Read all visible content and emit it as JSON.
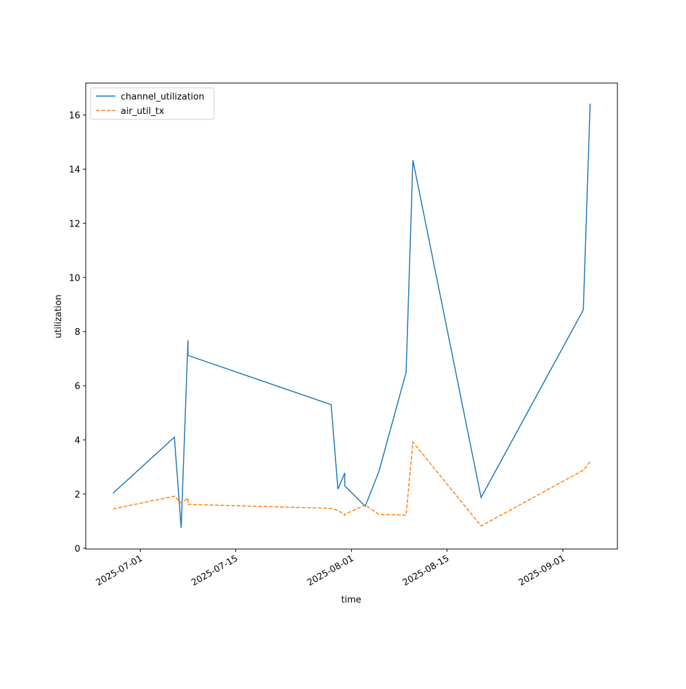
{
  "chart_data": {
    "type": "line",
    "x_label": "time",
    "y_label": "utilization",
    "x": [
      "2025-06-27",
      "2025-07-06",
      "2025-07-07",
      "2025-07-08",
      "2025-07-08",
      "2025-07-29",
      "2025-07-30",
      "2025-07-31",
      "2025-07-31",
      "2025-08-03",
      "2025-08-05",
      "2025-08-09",
      "2025-08-10",
      "2025-08-20",
      "2025-09-04",
      "2025-09-05"
    ],
    "series": [
      {
        "name": "channel_utilization",
        "color": "#1f77b4",
        "dash": false,
        "values": [
          2.03,
          4.1,
          0.75,
          7.68,
          7.12,
          5.3,
          2.18,
          2.78,
          2.3,
          1.55,
          2.82,
          6.5,
          14.33,
          1.87,
          8.8,
          16.42
        ]
      },
      {
        "name": "air_util_tx",
        "color": "#ff7f0e",
        "dash": true,
        "values": [
          1.45,
          1.92,
          1.67,
          1.85,
          1.62,
          1.47,
          1.4,
          1.22,
          1.25,
          1.6,
          1.25,
          1.22,
          3.92,
          0.82,
          2.88,
          3.2
        ]
      }
    ],
    "xlim": [
      "2025-06-23",
      "2025-09-09"
    ],
    "xticks": [
      "2025-07-01",
      "2025-07-15",
      "2025-08-01",
      "2025-08-15",
      "2025-09-01"
    ],
    "ylim": [
      -0.03,
      17.18
    ],
    "yticks": [
      0,
      2,
      4,
      6,
      8,
      10,
      12,
      14,
      16
    ],
    "grid": false,
    "legend": "upper left"
  }
}
